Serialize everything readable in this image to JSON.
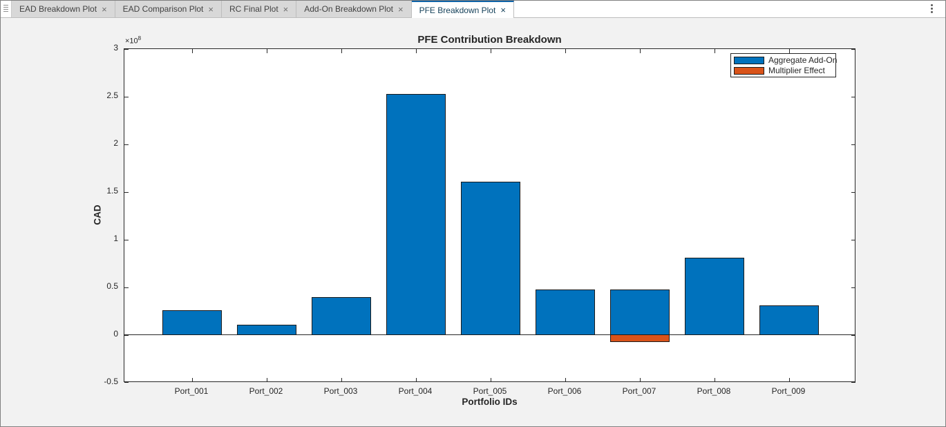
{
  "window": {
    "tab_bar": {
      "grip_icon": "tab-grip",
      "overflow_menu_icon": "vertical-ellipsis",
      "close_glyph": "×",
      "tabs": [
        {
          "label": "EAD Breakdown Plot",
          "active": false
        },
        {
          "label": "EAD Comparison Plot",
          "active": false
        },
        {
          "label": "RC Final Plot",
          "active": false
        },
        {
          "label": "Add-On Breakdown Plot",
          "active": false
        },
        {
          "label": "PFE Breakdown Plot",
          "active": true
        }
      ]
    }
  },
  "figure": {
    "axes_toolbar_icon": "horizontal-ellipsis"
  },
  "chart_data": {
    "type": "bar",
    "title": "PFE Contribution Breakdown",
    "xlabel": "Portfolio IDs",
    "ylabel": "CAD",
    "y_scale_label": {
      "prefix": "×10",
      "exponent": "8"
    },
    "categories": [
      "Port_001",
      "Port_002",
      "Port_003",
      "Port_004",
      "Port_005",
      "Port_006",
      "Port_007",
      "Port_008",
      "Port_009"
    ],
    "series": [
      {
        "name": "Aggregate Add-On",
        "color": "#0072BD",
        "values": [
          0.26,
          0.11,
          0.4,
          2.53,
          1.61,
          0.48,
          0.48,
          0.81,
          0.31
        ]
      },
      {
        "name": "Multiplier Effect",
        "color": "#D95319",
        "values": [
          0,
          0,
          0,
          0,
          0,
          0,
          -0.07,
          0,
          0
        ]
      }
    ],
    "value_scale": "1e8",
    "value_unit": "CAD",
    "ylim": [
      -0.5,
      3
    ],
    "yticks": [
      3,
      2.5,
      2,
      1.5,
      1,
      0.5,
      0,
      -0.5
    ],
    "ytick_labels": [
      "3",
      "2.5",
      "2",
      "1.5",
      "1",
      "0.5",
      "0",
      "-0.5"
    ],
    "grid": false,
    "legend": {
      "position": "northeast",
      "entries": [
        "Aggregate Add-On",
        "Multiplier Effect"
      ]
    },
    "bar_edge_color": "#1a1a1a"
  }
}
